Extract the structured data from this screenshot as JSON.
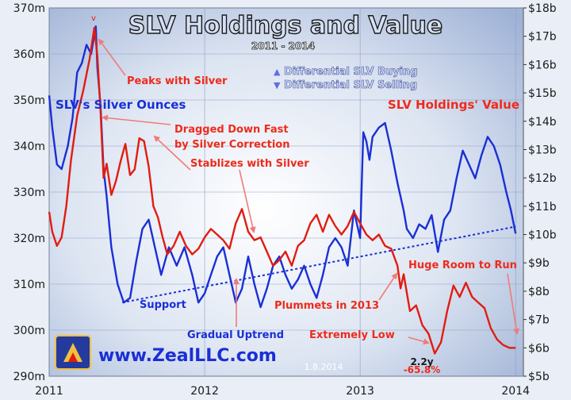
{
  "chart_data": {
    "type": "line",
    "title": "SLV Holdings and Value",
    "subtitle": "2011 - 2014",
    "x_range": [
      2011,
      2014.05
    ],
    "x_ticks": [
      "2011",
      "2012",
      "2013",
      "2014"
    ],
    "x_tick_values": [
      2011,
      2012,
      2013,
      2014
    ],
    "y_left": {
      "range": [
        290,
        370
      ],
      "unit": "m",
      "ticks": [
        "290m",
        "300m",
        "310m",
        "320m",
        "330m",
        "340m",
        "350m",
        "360m",
        "370m"
      ]
    },
    "y_right": {
      "range": [
        5,
        18
      ],
      "unit": "$b",
      "ticks": [
        "$5b",
        "$6b",
        "$7b",
        "$8b",
        "$9b",
        "$10b",
        "$11b",
        "$12b",
        "$13b",
        "$14b",
        "$15b",
        "$16b",
        "$17b",
        "$18b"
      ]
    },
    "grid": true,
    "series": [
      {
        "name": "SLV's Silver Ounces",
        "axis": "left",
        "color": "#1a2fd6",
        "x": [
          2011.0,
          2011.02,
          2011.05,
          2011.08,
          2011.12,
          2011.15,
          2011.18,
          2011.21,
          2011.24,
          2011.27,
          2011.3,
          2011.31,
          2011.33,
          2011.35,
          2011.37,
          2011.4,
          2011.44,
          2011.48,
          2011.52,
          2011.56,
          2011.6,
          2011.64,
          2011.68,
          2011.72,
          2011.77,
          2011.82,
          2011.87,
          2011.92,
          2011.96,
          2012.0,
          2012.04,
          2012.08,
          2012.12,
          2012.16,
          2012.2,
          2012.24,
          2012.28,
          2012.32,
          2012.36,
          2012.4,
          2012.44,
          2012.48,
          2012.52,
          2012.56,
          2012.6,
          2012.64,
          2012.68,
          2012.72,
          2012.76,
          2012.8,
          2012.84,
          2012.88,
          2012.92,
          2012.96,
          2013.0,
          2013.02,
          2013.04,
          2013.06,
          2013.08,
          2013.12,
          2013.16,
          2013.2,
          2013.24,
          2013.28,
          2013.3,
          2013.34,
          2013.38,
          2013.42,
          2013.46,
          2013.5,
          2013.54,
          2013.58,
          2013.62,
          2013.66,
          2013.7,
          2013.74,
          2013.78,
          2013.82,
          2013.86,
          2013.9,
          2013.94,
          2013.97,
          2014.0
        ],
        "values": [
          351,
          344,
          336,
          335,
          340,
          346,
          356,
          358,
          362,
          360,
          366,
          357,
          349,
          335,
          329,
          318,
          310,
          306,
          307,
          315,
          322,
          324,
          318,
          312,
          318,
          314,
          318,
          312,
          306,
          308,
          312,
          316,
          318,
          312,
          306,
          309,
          316,
          310,
          305,
          309,
          314,
          316,
          312,
          309,
          311,
          314,
          310,
          307,
          312,
          318,
          320,
          318,
          314,
          326,
          320,
          343,
          341,
          337,
          342,
          344,
          345,
          339,
          332,
          326,
          322,
          320,
          323,
          322,
          325,
          317,
          324,
          326,
          333,
          339,
          336,
          333,
          338,
          342,
          340,
          336,
          330,
          326,
          321
        ]
      },
      {
        "name": "SLV Holdings' Value",
        "axis": "right",
        "color": "#e21c10",
        "x": [
          2011.0,
          2011.02,
          2011.05,
          2011.08,
          2011.11,
          2011.14,
          2011.18,
          2011.22,
          2011.26,
          2011.29,
          2011.31,
          2011.33,
          2011.35,
          2011.37,
          2011.4,
          2011.43,
          2011.46,
          2011.49,
          2011.52,
          2011.55,
          2011.58,
          2011.61,
          2011.64,
          2011.67,
          2011.7,
          2011.73,
          2011.76,
          2011.8,
          2011.84,
          2011.88,
          2011.92,
          2011.96,
          2012.0,
          2012.04,
          2012.08,
          2012.12,
          2012.16,
          2012.2,
          2012.24,
          2012.28,
          2012.32,
          2012.36,
          2012.4,
          2012.44,
          2012.48,
          2012.52,
          2012.56,
          2012.6,
          2012.64,
          2012.68,
          2012.72,
          2012.76,
          2012.8,
          2012.84,
          2012.88,
          2012.92,
          2012.96,
          2013.0,
          2013.04,
          2013.08,
          2013.12,
          2013.16,
          2013.2,
          2013.24,
          2013.26,
          2013.28,
          2013.32,
          2013.36,
          2013.4,
          2013.44,
          2013.48,
          2013.52,
          2013.56,
          2013.6,
          2013.64,
          2013.68,
          2013.72,
          2013.76,
          2013.8,
          2013.84,
          2013.88,
          2013.92,
          2013.96,
          2014.0
        ],
        "values": [
          10.8,
          10.1,
          9.6,
          9.9,
          11.0,
          12.6,
          14.2,
          15.1,
          16.2,
          17.3,
          16.3,
          14.4,
          12.0,
          12.5,
          11.4,
          11.9,
          12.6,
          13.2,
          12.1,
          12.3,
          13.4,
          13.3,
          12.4,
          11.0,
          10.6,
          9.9,
          9.3,
          9.6,
          10.1,
          9.6,
          9.3,
          9.5,
          9.9,
          10.2,
          10.0,
          9.8,
          9.5,
          10.4,
          10.9,
          10.1,
          9.8,
          9.9,
          9.4,
          8.9,
          9.1,
          9.4,
          8.9,
          9.6,
          9.8,
          10.4,
          10.7,
          10.1,
          10.7,
          10.3,
          10.0,
          10.3,
          10.8,
          10.4,
          10.0,
          9.8,
          10.0,
          9.6,
          9.5,
          8.9,
          8.1,
          8.6,
          7.3,
          7.5,
          6.8,
          6.5,
          5.8,
          6.2,
          7.3,
          8.2,
          7.8,
          8.3,
          7.8,
          7.6,
          7.4,
          6.7,
          6.3,
          6.1,
          6.0,
          6.0
        ]
      }
    ],
    "uptrend_line": {
      "x": [
        2011.47,
        2014.0
      ],
      "values": [
        306,
        322.5
      ],
      "color": "#1a2fd6"
    },
    "legend": [
      {
        "symbol": "▲",
        "label": "Differential SLV Buying"
      },
      {
        "symbol": "▼",
        "label": "Differential SLV Selling"
      }
    ],
    "annotations": {
      "series_label_left": "SLV's Silver Ounces",
      "series_label_right": "SLV Holdings' Value",
      "peaks": "Peaks with Silver",
      "dragged_1": "Dragged Down Fast",
      "dragged_2": "by Silver Correction",
      "stablizes": "Stablizes with Silver",
      "support": "Support",
      "gradual": "Gradual Uptrend",
      "plummets": "Plummets in 2013",
      "extremely": "Extremely Low",
      "huge": "Huge Room to Run",
      "decline": "-65.8%",
      "duration": "2.2y",
      "date": "1.8.2014",
      "website": "www.ZealLLC.com"
    },
    "colors": {
      "ounces": "#1a2fd6",
      "value": "#e21c10",
      "annotation": "#ee2b1b",
      "arrow": "#f07b78",
      "title": "#d6e0f5",
      "background": "#e9eef7"
    }
  }
}
